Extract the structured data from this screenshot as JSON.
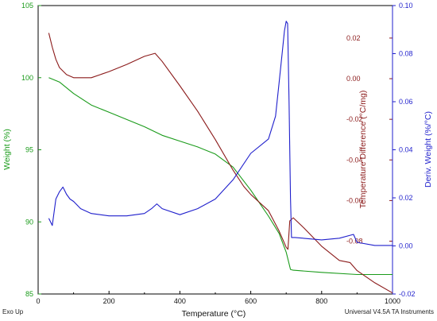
{
  "footer": {
    "left": "Exo Up",
    "right": "Universal V4.5A TA Instruments"
  },
  "chart_data": {
    "type": "line",
    "xlabel": "Temperature (°C)",
    "xlim": [
      0,
      1000
    ],
    "xticks": [
      0,
      200,
      400,
      600,
      800,
      1000
    ],
    "grid": false,
    "axes": {
      "y_left": {
        "label": "Weight (%)",
        "color": "#1a9b1a",
        "range": [
          85,
          105
        ],
        "ticks": [
          85,
          90,
          95,
          100,
          105
        ]
      },
      "y_right_inner": {
        "label": "Temperature Difference (°C/mg)",
        "color": "#8b1a1a",
        "range": [
          -0.106,
          0.036
        ],
        "ticks": [
          -0.08,
          -0.06,
          -0.04,
          -0.02,
          0.0,
          0.02
        ],
        "tick_labels": [
          "-0.08",
          "-0.06",
          "-0.04",
          "-0.02",
          "0.00",
          "0.02"
        ]
      },
      "y_right_outer": {
        "label": "Deriv. Weight (%/°C)",
        "color": "#1f1fcc",
        "range": [
          -0.02,
          0.1
        ],
        "ticks": [
          -0.02,
          0.0,
          0.02,
          0.04,
          0.06,
          0.08,
          0.1
        ],
        "tick_labels": [
          "-0.02",
          "0.00",
          "0.02",
          "0.04",
          "0.06",
          "0.08",
          "0.10"
        ]
      }
    },
    "series": [
      {
        "axis": "y_left",
        "color": "#1a9b1a",
        "x": [
          30,
          60,
          100,
          150,
          200,
          250,
          300,
          350,
          400,
          450,
          500,
          550,
          600,
          650,
          680,
          700,
          712,
          720,
          800,
          900,
          1000
        ],
        "y": [
          100.0,
          99.7,
          98.9,
          98.1,
          97.6,
          97.1,
          96.6,
          96.0,
          95.6,
          95.2,
          94.7,
          93.8,
          92.2,
          90.4,
          89.2,
          87.9,
          86.7,
          86.65,
          86.5,
          86.35,
          86.35
        ]
      },
      {
        "axis": "y_right_inner",
        "color": "#8b1a1a",
        "x": [
          30,
          40,
          50,
          60,
          80,
          100,
          150,
          200,
          250,
          300,
          330,
          350,
          400,
          450,
          500,
          550,
          580,
          600,
          650,
          680,
          700,
          705,
          710,
          720,
          750,
          800,
          850,
          880,
          900,
          950,
          1000
        ],
        "y": [
          0.0225,
          0.0155,
          0.0095,
          0.0055,
          0.002,
          0.0005,
          0.0005,
          0.0035,
          0.007,
          0.011,
          0.0125,
          0.0085,
          -0.0035,
          -0.016,
          -0.03,
          -0.045,
          -0.053,
          -0.057,
          -0.065,
          -0.075,
          -0.083,
          -0.084,
          -0.07,
          -0.0685,
          -0.0735,
          -0.0825,
          -0.0895,
          -0.0905,
          -0.0945,
          -0.1005,
          -0.1055
        ]
      },
      {
        "axis": "y_right_outer",
        "color": "#1f1fcc",
        "x": [
          30,
          40,
          50,
          60,
          70,
          80,
          90,
          100,
          120,
          150,
          200,
          250,
          300,
          320,
          335,
          350,
          400,
          450,
          500,
          550,
          600,
          650,
          670,
          680,
          690,
          695,
          700,
          704,
          708,
          712,
          715,
          725,
          800,
          850,
          890,
          900,
          950,
          1000
        ],
        "y": [
          0.0115,
          0.0085,
          0.0195,
          0.0225,
          0.0245,
          0.0215,
          0.0195,
          0.0185,
          0.0155,
          0.0135,
          0.0125,
          0.0125,
          0.0135,
          0.0155,
          0.0175,
          0.0155,
          0.013,
          0.0155,
          0.0195,
          0.0275,
          0.0385,
          0.0445,
          0.054,
          0.068,
          0.082,
          0.0895,
          0.0935,
          0.0925,
          0.06,
          0.02,
          0.0035,
          0.0035,
          0.0025,
          0.0032,
          0.0048,
          0.0015,
          0.0002,
          0.0002
        ]
      }
    ]
  }
}
